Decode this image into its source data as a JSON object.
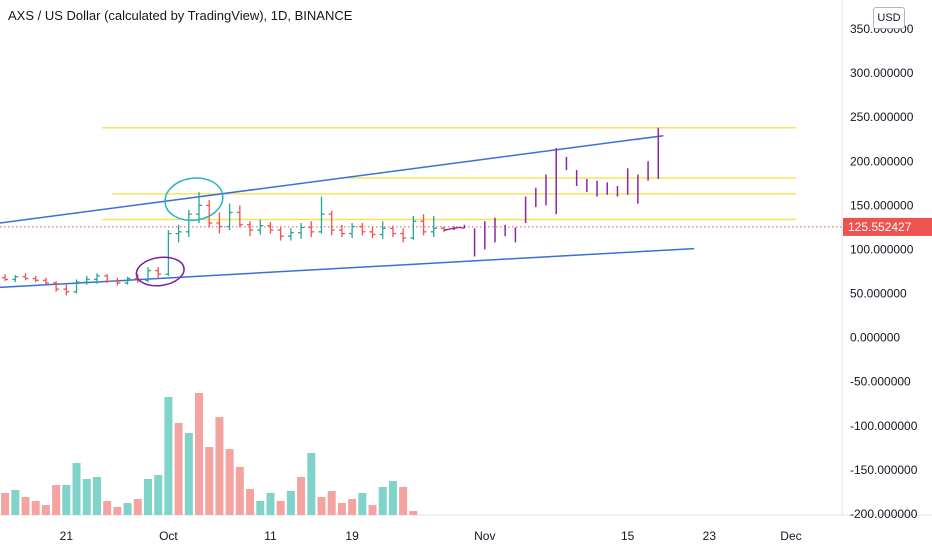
{
  "header": {
    "title": "AXS / US Dollar (calculated by TradingView), 1D, BINANCE",
    "currency_button": "USD"
  },
  "colors": {
    "up": "#26a69a",
    "down": "#ef5350",
    "vol_up": "#7fd3c8",
    "vol_down": "#f5a3a1",
    "trend": "#3a6fd8",
    "level": "#f7e35b",
    "projection": "#8e24aa",
    "circle_teal": "#26b5c8",
    "circle_purple": "#7b1fa2",
    "last_price_bg": "#ef5350"
  },
  "chart_data": {
    "type": "candlestick",
    "title": "AXS / US Dollar (calculated by TradingView), 1D, BINANCE",
    "x_ticks": [
      {
        "label": "21",
        "day": 0
      },
      {
        "label": "Oct",
        "day": 10
      },
      {
        "label": "11",
        "day": 20
      },
      {
        "label": "19",
        "day": 28
      },
      {
        "label": "Nov",
        "day": 41
      },
      {
        "label": "15",
        "day": 55
      },
      {
        "label": "23",
        "day": 63
      },
      {
        "label": "Dec",
        "day": 71
      }
    ],
    "y_ticks": [
      "350.000000",
      "300.000000",
      "250.000000",
      "200.000000",
      "150.000000",
      "100.000000",
      "50.000000",
      "0.000000",
      "-50.000000",
      "-100.000000",
      "-150.000000",
      "-200.000000"
    ],
    "y_tick_values": [
      350,
      300,
      250,
      200,
      150,
      100,
      50,
      0,
      -50,
      -100,
      -150,
      -200
    ],
    "ylim": [
      -205,
      362
    ],
    "x_range_days": [
      -6.5,
      76
    ],
    "last_price": {
      "value": 125.552427,
      "label": "125.552427"
    },
    "candles": [
      {
        "day": -6,
        "o": 68,
        "h": 72,
        "l": 64,
        "c": 66
      },
      {
        "day": -5,
        "o": 66,
        "h": 71,
        "l": 63,
        "c": 69
      },
      {
        "day": -4,
        "o": 69,
        "h": 73,
        "l": 65,
        "c": 67
      },
      {
        "day": -3,
        "o": 67,
        "h": 70,
        "l": 63,
        "c": 65
      },
      {
        "day": -2,
        "o": 65,
        "h": 68,
        "l": 60,
        "c": 62
      },
      {
        "day": -1,
        "o": 62,
        "h": 64,
        "l": 52,
        "c": 55
      },
      {
        "day": 0,
        "o": 55,
        "h": 60,
        "l": 48,
        "c": 52
      },
      {
        "day": 1,
        "o": 52,
        "h": 66,
        "l": 50,
        "c": 63
      },
      {
        "day": 2,
        "o": 63,
        "h": 70,
        "l": 60,
        "c": 66
      },
      {
        "day": 3,
        "o": 66,
        "h": 73,
        "l": 61,
        "c": 70
      },
      {
        "day": 4,
        "o": 70,
        "h": 72,
        "l": 62,
        "c": 64
      },
      {
        "day": 5,
        "o": 64,
        "h": 68,
        "l": 59,
        "c": 62
      },
      {
        "day": 6,
        "o": 62,
        "h": 69,
        "l": 60,
        "c": 67
      },
      {
        "day": 7,
        "o": 67,
        "h": 72,
        "l": 62,
        "c": 65
      },
      {
        "day": 8,
        "o": 65,
        "h": 80,
        "l": 63,
        "c": 76
      },
      {
        "day": 9,
        "o": 76,
        "h": 80,
        "l": 68,
        "c": 72
      },
      {
        "day": 10,
        "o": 72,
        "h": 122,
        "l": 70,
        "c": 118
      },
      {
        "day": 11,
        "o": 118,
        "h": 128,
        "l": 108,
        "c": 120
      },
      {
        "day": 12,
        "o": 120,
        "h": 145,
        "l": 114,
        "c": 140
      },
      {
        "day": 13,
        "o": 140,
        "h": 165,
        "l": 130,
        "c": 150
      },
      {
        "day": 14,
        "o": 150,
        "h": 156,
        "l": 125,
        "c": 130
      },
      {
        "day": 15,
        "o": 130,
        "h": 142,
        "l": 118,
        "c": 126
      },
      {
        "day": 16,
        "o": 126,
        "h": 152,
        "l": 122,
        "c": 142
      },
      {
        "day": 17,
        "o": 142,
        "h": 150,
        "l": 125,
        "c": 128
      },
      {
        "day": 18,
        "o": 128,
        "h": 132,
        "l": 115,
        "c": 122
      },
      {
        "day": 19,
        "o": 122,
        "h": 134,
        "l": 117,
        "c": 127
      },
      {
        "day": 20,
        "o": 127,
        "h": 131,
        "l": 118,
        "c": 122
      },
      {
        "day": 21,
        "o": 122,
        "h": 126,
        "l": 110,
        "c": 115
      },
      {
        "day": 22,
        "o": 115,
        "h": 124,
        "l": 110,
        "c": 119
      },
      {
        "day": 23,
        "o": 119,
        "h": 130,
        "l": 112,
        "c": 125
      },
      {
        "day": 24,
        "o": 125,
        "h": 132,
        "l": 114,
        "c": 120
      },
      {
        "day": 25,
        "o": 120,
        "h": 160,
        "l": 118,
        "c": 140
      },
      {
        "day": 26,
        "o": 140,
        "h": 144,
        "l": 116,
        "c": 122
      },
      {
        "day": 27,
        "o": 122,
        "h": 128,
        "l": 114,
        "c": 118
      },
      {
        "day": 28,
        "o": 118,
        "h": 130,
        "l": 113,
        "c": 126
      },
      {
        "day": 29,
        "o": 126,
        "h": 130,
        "l": 116,
        "c": 120
      },
      {
        "day": 30,
        "o": 120,
        "h": 126,
        "l": 113,
        "c": 117
      },
      {
        "day": 31,
        "o": 117,
        "h": 132,
        "l": 112,
        "c": 124
      },
      {
        "day": 32,
        "o": 124,
        "h": 127,
        "l": 114,
        "c": 118
      },
      {
        "day": 33,
        "o": 118,
        "h": 124,
        "l": 108,
        "c": 113
      },
      {
        "day": 34,
        "o": 113,
        "h": 138,
        "l": 111,
        "c": 132
      },
      {
        "day": 35,
        "o": 132,
        "h": 140,
        "l": 116,
        "c": 120
      },
      {
        "day": 36,
        "o": 120,
        "h": 138,
        "l": 114,
        "c": 124
      },
      {
        "day": 37,
        "o": 124,
        "h": 126,
        "l": 120,
        "c": 122
      }
    ],
    "projection_bars": [
      {
        "day": 38,
        "h": 126,
        "l": 122
      },
      {
        "day": 39,
        "h": 128,
        "l": 124
      },
      {
        "day": 40,
        "h": 124,
        "l": 92
      },
      {
        "day": 41,
        "h": 132,
        "l": 100
      },
      {
        "day": 42,
        "h": 136,
        "l": 108
      },
      {
        "day": 43,
        "h": 128,
        "l": 115
      },
      {
        "day": 44,
        "h": 125,
        "l": 108
      },
      {
        "day": 45,
        "h": 160,
        "l": 130
      },
      {
        "day": 46,
        "h": 170,
        "l": 148
      },
      {
        "day": 47,
        "h": 185,
        "l": 150
      },
      {
        "day": 48,
        "h": 215,
        "l": 140
      },
      {
        "day": 49,
        "h": 205,
        "l": 190
      },
      {
        "day": 50,
        "h": 190,
        "l": 172
      },
      {
        "day": 51,
        "h": 180,
        "l": 165
      },
      {
        "day": 52,
        "h": 178,
        "l": 160
      },
      {
        "day": 53,
        "h": 176,
        "l": 162
      },
      {
        "day": 54,
        "h": 172,
        "l": 160
      },
      {
        "day": 55,
        "h": 192,
        "l": 162
      },
      {
        "day": 56,
        "h": 185,
        "l": 152
      },
      {
        "day": 57,
        "h": 200,
        "l": 178
      },
      {
        "day": 58,
        "h": 238,
        "l": 180
      }
    ],
    "projection_tail": [
      {
        "day": 37,
        "v": 122
      },
      {
        "day": 38.5,
        "v": 125
      },
      {
        "day": 39,
        "v": 124
      }
    ],
    "volume": [
      {
        "day": -6,
        "v": 22,
        "up": false
      },
      {
        "day": -5,
        "v": 25,
        "up": true
      },
      {
        "day": -4,
        "v": 18,
        "up": false
      },
      {
        "day": -3,
        "v": 14,
        "up": false
      },
      {
        "day": -2,
        "v": 10,
        "up": false
      },
      {
        "day": -1,
        "v": 30,
        "up": false
      },
      {
        "day": 0,
        "v": 30,
        "up": true
      },
      {
        "day": 1,
        "v": 52,
        "up": true
      },
      {
        "day": 2,
        "v": 36,
        "up": true
      },
      {
        "day": 3,
        "v": 38,
        "up": true
      },
      {
        "day": 4,
        "v": 14,
        "up": false
      },
      {
        "day": 5,
        "v": 8,
        "up": false
      },
      {
        "day": 6,
        "v": 12,
        "up": true
      },
      {
        "day": 7,
        "v": 16,
        "up": false
      },
      {
        "day": 8,
        "v": 36,
        "up": true
      },
      {
        "day": 9,
        "v": 40,
        "up": true
      },
      {
        "day": 10,
        "v": 118,
        "up": true
      },
      {
        "day": 11,
        "v": 92,
        "up": false
      },
      {
        "day": 12,
        "v": 82,
        "up": true
      },
      {
        "day": 13,
        "v": 122,
        "up": false
      },
      {
        "day": 14,
        "v": 68,
        "up": false
      },
      {
        "day": 15,
        "v": 98,
        "up": false
      },
      {
        "day": 16,
        "v": 66,
        "up": false
      },
      {
        "day": 17,
        "v": 48,
        "up": false
      },
      {
        "day": 18,
        "v": 26,
        "up": false
      },
      {
        "day": 19,
        "v": 14,
        "up": true
      },
      {
        "day": 20,
        "v": 22,
        "up": true
      },
      {
        "day": 21,
        "v": 14,
        "up": false
      },
      {
        "day": 22,
        "v": 24,
        "up": true
      },
      {
        "day": 23,
        "v": 38,
        "up": false
      },
      {
        "day": 24,
        "v": 62,
        "up": true
      },
      {
        "day": 25,
        "v": 18,
        "up": false
      },
      {
        "day": 26,
        "v": 24,
        "up": false
      },
      {
        "day": 27,
        "v": 12,
        "up": false
      },
      {
        "day": 28,
        "v": 16,
        "up": false
      },
      {
        "day": 29,
        "v": 22,
        "up": true
      },
      {
        "day": 30,
        "v": 10,
        "up": false
      },
      {
        "day": 31,
        "v": 28,
        "up": true
      },
      {
        "day": 32,
        "v": 34,
        "up": true
      },
      {
        "day": 33,
        "v": 28,
        "up": false
      },
      {
        "day": 34,
        "v": 4,
        "up": false
      }
    ],
    "volume_max": 130,
    "trend_lines": [
      {
        "from": {
          "day": -6.5,
          "v": 130
        },
        "to": {
          "day": 58.5,
          "v": 229
        }
      },
      {
        "from": {
          "day": -6.5,
          "v": 57
        },
        "to": {
          "day": 61.5,
          "v": 101
        }
      }
    ],
    "levels": [
      {
        "value": 238,
        "from_day": 3.5,
        "to_day": 71.5
      },
      {
        "value": 181,
        "from_day": 27.5,
        "to_day": 71.5
      },
      {
        "value": 163,
        "from_day": 4.5,
        "to_day": 71.5
      },
      {
        "value": 134,
        "from_day": 3.5,
        "to_day": 71.5
      }
    ],
    "annotations": [
      {
        "type": "circle",
        "color": "teal",
        "day": 12.5,
        "v": 157
      },
      {
        "type": "circle",
        "color": "purple",
        "day": 9.2,
        "v": 75
      }
    ]
  }
}
